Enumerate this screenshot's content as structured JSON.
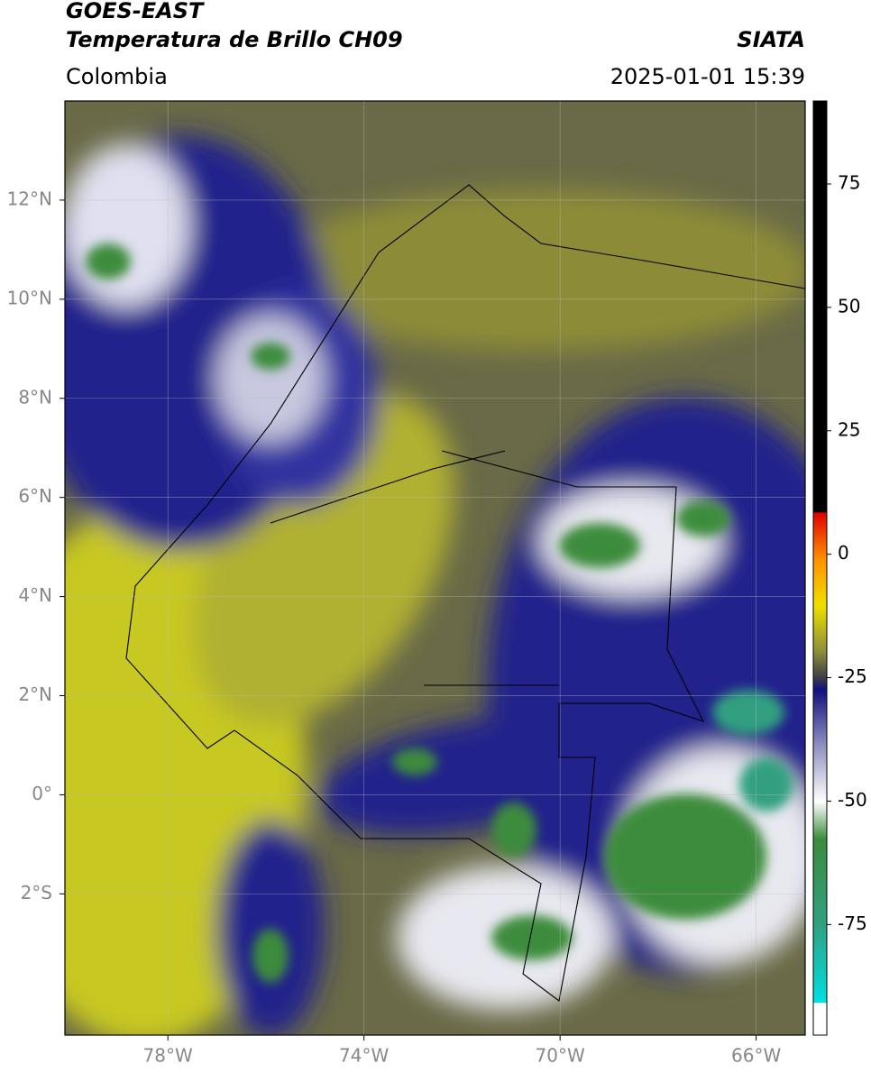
{
  "header": {
    "title": "GOES-EAST",
    "subtitle": "Temperatura de Brillo CH09",
    "source": "SIATA",
    "region": "Colombia",
    "datetime": "2025-01-01 15:39"
  },
  "map": {
    "lon_range": [
      -80.1,
      -65
    ],
    "lat_range": [
      -4.85,
      14
    ],
    "lat_ticks": [
      {
        "value": 12,
        "label": "12°N"
      },
      {
        "value": 10,
        "label": "10°N"
      },
      {
        "value": 8,
        "label": "8°N"
      },
      {
        "value": 6,
        "label": "6°N"
      },
      {
        "value": 4,
        "label": "4°N"
      },
      {
        "value": 2,
        "label": "2°N"
      },
      {
        "value": 0,
        "label": "0°"
      },
      {
        "value": -2,
        "label": "2°S"
      }
    ],
    "lon_ticks": [
      {
        "value": -78,
        "label": "78°W"
      },
      {
        "value": -74,
        "label": "74°W"
      },
      {
        "value": -70,
        "label": "70°W"
      },
      {
        "value": -66,
        "label": "66°W"
      }
    ]
  },
  "colorbar": {
    "range": [
      -97.4,
      91.8
    ],
    "ticks": [
      75,
      50,
      25,
      0,
      -25,
      -50,
      -75
    ]
  }
}
